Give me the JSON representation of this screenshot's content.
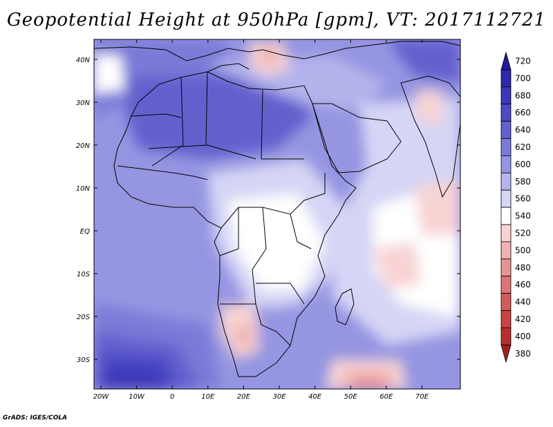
{
  "title": "Geopotential Height at 950hPa [gpm], VT: 2017112721",
  "credit": "GrADS: IGES/COLA",
  "axes": {
    "lat_labels": [
      "40N",
      "30N",
      "20N",
      "10N",
      "EQ",
      "10S",
      "20S",
      "30S"
    ],
    "lon_labels": [
      "20W",
      "10W",
      "0",
      "10E",
      "20E",
      "30E",
      "40E",
      "50E",
      "60E",
      "70E"
    ]
  },
  "colorbar": {
    "levels": [
      "720",
      "700",
      "680",
      "660",
      "640",
      "620",
      "600",
      "580",
      "560",
      "540",
      "520",
      "500",
      "480",
      "460",
      "440",
      "420",
      "400",
      "380"
    ],
    "colors": [
      "#221a9c",
      "#2e28ab",
      "#3c37b8",
      "#4e4ac4",
      "#6361ce",
      "#7b7ad8",
      "#9595e2",
      "#b4b4ec",
      "#d5d6f5",
      "#ffffff",
      "#f8d3d3",
      "#f0b2b2",
      "#e69393",
      "#dc7575",
      "#d25a5a",
      "#c74343",
      "#b72e2e",
      "#a11e1e"
    ]
  },
  "colors": {
    "ocean_base": "#9595e2",
    "land_base": "#b4b4ec",
    "border": "#000000"
  }
}
